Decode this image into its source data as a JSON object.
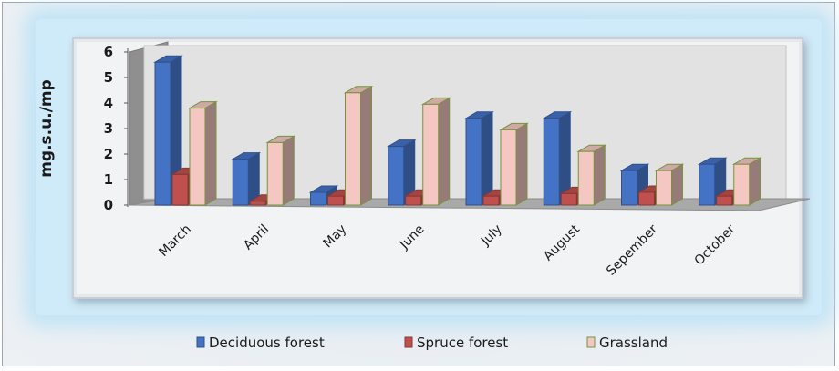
{
  "chart_data": {
    "type": "bar",
    "style": "3d-clustered-column",
    "categories": [
      "March",
      "April",
      "May",
      "June",
      "July",
      "August",
      "Sepember",
      "October"
    ],
    "series": [
      {
        "name": "Deciduous forest",
        "values": [
          5.6,
          1.8,
          0.5,
          2.3,
          3.4,
          3.4,
          1.35,
          1.6
        ],
        "color": "#4472c4"
      },
      {
        "name": "Spruce forest",
        "values": [
          1.2,
          0.15,
          0.35,
          0.35,
          0.35,
          0.45,
          0.5,
          0.35
        ],
        "color": "#c0504d"
      },
      {
        "name": "Grassland",
        "values": [
          3.8,
          2.45,
          4.4,
          3.95,
          2.95,
          2.1,
          1.35,
          1.6
        ],
        "color": "#f4c7c3",
        "edge": "#77933c"
      }
    ],
    "title": "",
    "xlabel": "",
    "ylabel": "mg.s.u./mp",
    "ylim": [
      0,
      6
    ],
    "yticks": [
      "0",
      "1",
      "2",
      "3",
      "4",
      "5",
      "6"
    ],
    "grid": false,
    "legend_position": "bottom"
  }
}
